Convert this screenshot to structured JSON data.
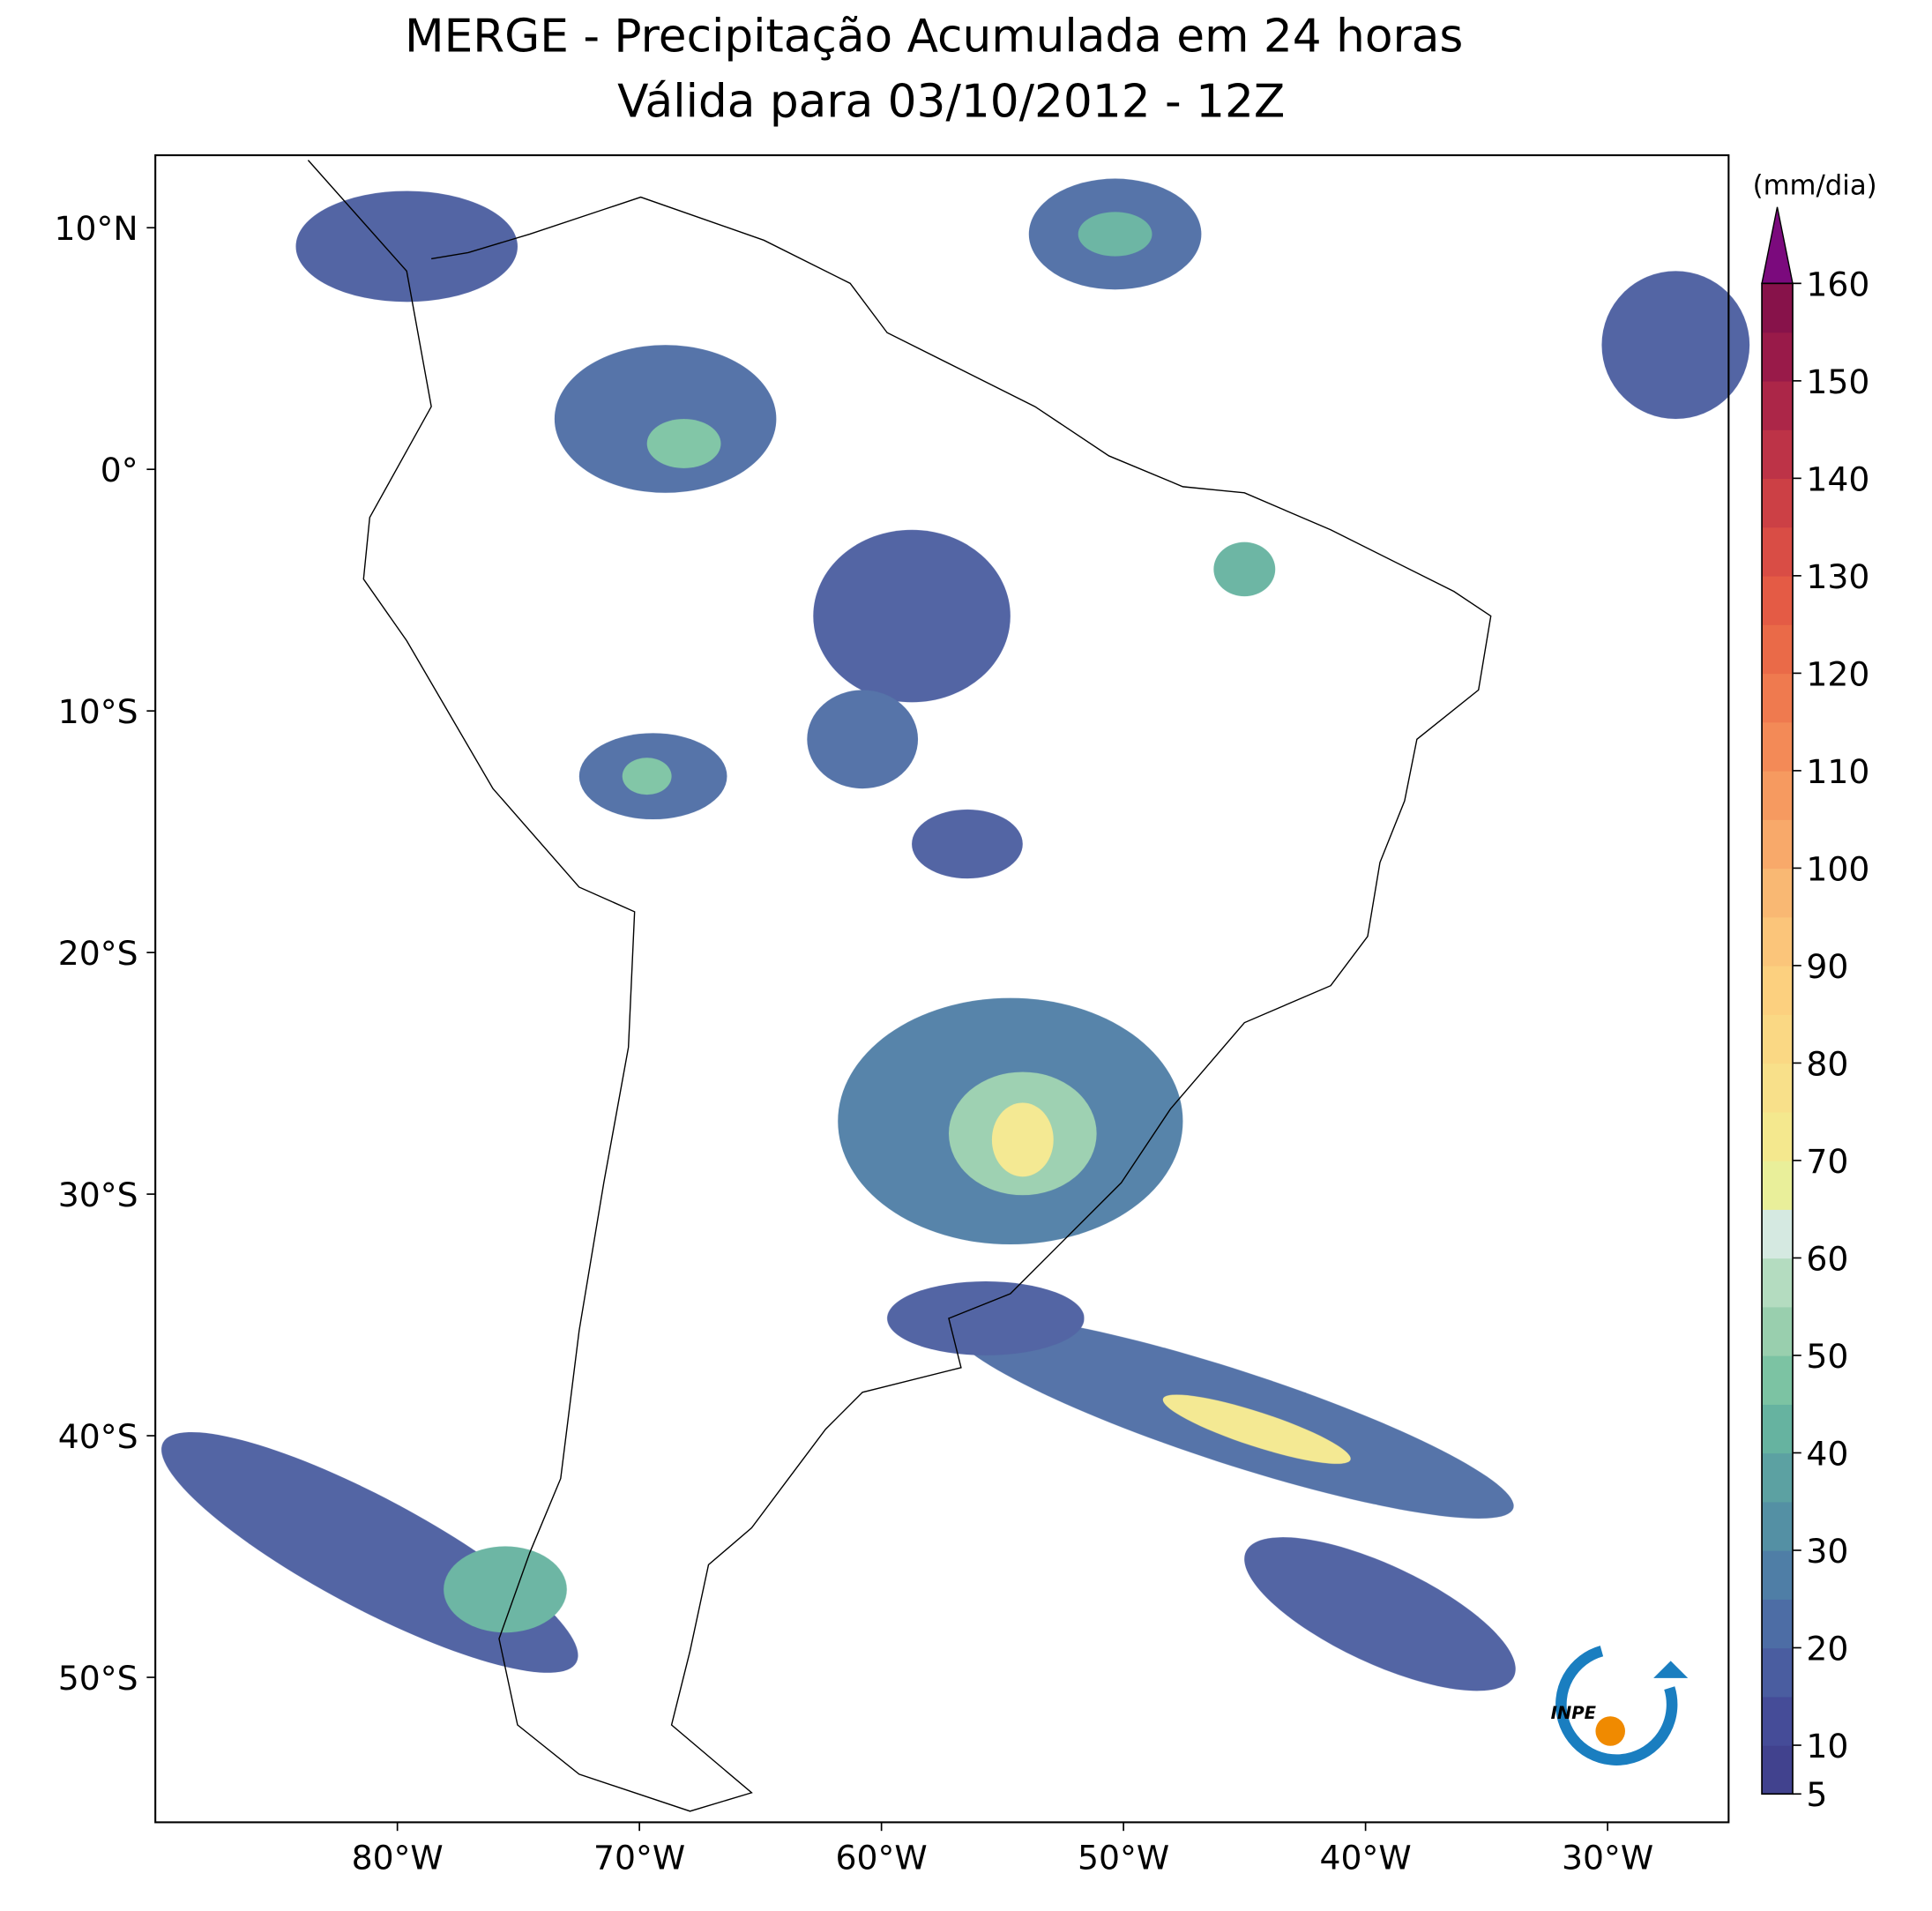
{
  "chart_data": {
    "type": "map",
    "title": "MERGE - Precipitação Acumulada em 24 horas",
    "subtitle": "Válida para 03/10/2012 - 12Z",
    "xlim": [
      -90,
      -25
    ],
    "ylim": [
      -56,
      13
    ],
    "xticks": [
      {
        "value": -80,
        "label": "80°W"
      },
      {
        "value": -70,
        "label": "70°W"
      },
      {
        "value": -60,
        "label": "60°W"
      },
      {
        "value": -50,
        "label": "50°W"
      },
      {
        "value": -40,
        "label": "40°W"
      },
      {
        "value": -30,
        "label": "30°W"
      }
    ],
    "yticks": [
      {
        "value": 10,
        "label": "10°N"
      },
      {
        "value": 0,
        "label": "0°"
      },
      {
        "value": -10,
        "label": "10°S"
      },
      {
        "value": -20,
        "label": "20°S"
      },
      {
        "value": -30,
        "label": "30°S"
      },
      {
        "value": -40,
        "label": "40°S"
      },
      {
        "value": -50,
        "label": "50°S"
      }
    ],
    "colorbar": {
      "units": "(mm/dia)",
      "clim": [
        5,
        160
      ],
      "ticks": [
        5,
        10,
        20,
        30,
        40,
        50,
        60,
        70,
        80,
        90,
        100,
        110,
        120,
        130,
        140,
        150,
        160
      ],
      "colors": [
        "#41428e",
        "#454c98",
        "#4a5da0",
        "#4d6da5",
        "#4f7ea6",
        "#5490a4",
        "#5ca1a2",
        "#66b3a0",
        "#7cc3a3",
        "#99cfae",
        "#b4dcc0",
        "#d5e9e1",
        "#e9ef9a",
        "#f4e88e",
        "#f8e08a",
        "#fad884",
        "#fcd07f",
        "#fbc57a",
        "#f9b873",
        "#f8a96a",
        "#f69a60",
        "#f38a57",
        "#ef7a4f",
        "#ea6a48",
        "#e45b45",
        "#d94d45",
        "#cc4045",
        "#bd3347",
        "#ac2648",
        "#991a49",
        "#87124a"
      ],
      "extend_color": "#7b0a7d"
    },
    "logo": "INPE"
  }
}
